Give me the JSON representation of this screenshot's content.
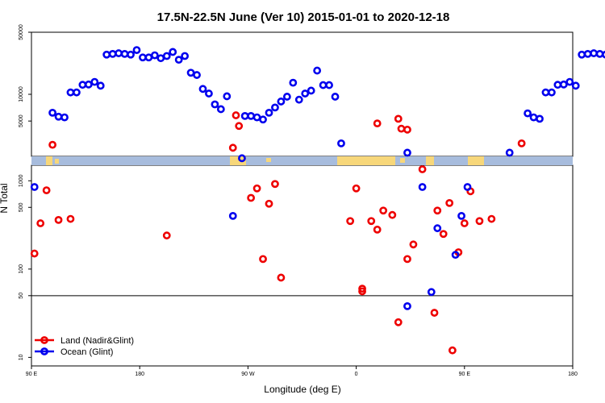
{
  "chart_data": {
    "type": "scatter",
    "title": "17.5N-22.5N June (Ver 10)   2015-01-01 to 2020-12-18",
    "xlabel": "Longitude (deg E)",
    "ylabel": "N Total",
    "x_ticks": [
      {
        "value": 90,
        "label": "90 E"
      },
      {
        "value": 180,
        "label": "180"
      },
      {
        "value": 270,
        "label": "90 W"
      },
      {
        "value": 360,
        "label": "0"
      },
      {
        "value": 450,
        "label": "90 E"
      },
      {
        "value": 540,
        "label": "180"
      }
    ],
    "xlim": [
      90,
      540
    ],
    "upper_panel": {
      "scale": "log",
      "ylim": [
        2000,
        50000
      ],
      "y_ticks": [
        {
          "value": 5000,
          "label": "5000"
        },
        {
          "value": 10000,
          "label": "10000"
        },
        {
          "value": 50000,
          "label": "50000"
        }
      ]
    },
    "lower_panel": {
      "scale": "log",
      "ylim": [
        8,
        1500
      ],
      "y_ticks": [
        {
          "value": 10,
          "label": "10"
        },
        {
          "value": 50,
          "label": "50"
        },
        {
          "value": 100,
          "label": "100"
        },
        {
          "value": 500,
          "label": "500"
        },
        {
          "value": 1000,
          "label": "1000"
        }
      ],
      "reference_line": 50
    },
    "series": [
      {
        "name": "Land (Nadir&Glint)",
        "color": "#ee0000",
        "upper": [
          [
            107.5,
            2700
          ],
          [
            257.5,
            2500
          ],
          [
            260,
            5800
          ],
          [
            262.5,
            4400
          ],
          [
            377.5,
            4700
          ],
          [
            395,
            5300
          ],
          [
            397.5,
            4100
          ],
          [
            402.5,
            4000
          ],
          [
            497.5,
            2800
          ]
        ],
        "lower": [
          [
            92.5,
            150
          ],
          [
            97.5,
            330
          ],
          [
            102.5,
            780
          ],
          [
            112.5,
            360
          ],
          [
            122.5,
            370
          ],
          [
            202.5,
            240
          ],
          [
            272.5,
            640
          ],
          [
            277.5,
            820
          ],
          [
            282.5,
            130
          ],
          [
            287.5,
            550
          ],
          [
            292.5,
            920
          ],
          [
            297.5,
            80
          ],
          [
            355,
            350
          ],
          [
            360,
            820
          ],
          [
            365,
            60
          ],
          [
            365,
            56
          ],
          [
            372.5,
            350
          ],
          [
            377.5,
            280
          ],
          [
            382.5,
            460
          ],
          [
            390,
            410
          ],
          [
            395,
            25
          ],
          [
            402.5,
            130
          ],
          [
            407.5,
            190
          ],
          [
            415,
            1350
          ],
          [
            425,
            32
          ],
          [
            427.5,
            460
          ],
          [
            432.5,
            250
          ],
          [
            437.5,
            560
          ],
          [
            440,
            12
          ],
          [
            445,
            155
          ],
          [
            450,
            330
          ],
          [
            455,
            760
          ],
          [
            462.5,
            350
          ],
          [
            472.5,
            370
          ]
        ]
      },
      {
        "name": "Ocean (Glint)",
        "color": "#0000ee",
        "upper": [
          [
            107.5,
            6200
          ],
          [
            112.5,
            5600
          ],
          [
            117.5,
            5500
          ],
          [
            122.5,
            10500
          ],
          [
            127.5,
            10500
          ],
          [
            132.5,
            12800
          ],
          [
            137.5,
            12900
          ],
          [
            142.5,
            13800
          ],
          [
            147.5,
            12500
          ],
          [
            152.5,
            28000
          ],
          [
            157.5,
            28500
          ],
          [
            162.5,
            29000
          ],
          [
            167.5,
            28500
          ],
          [
            172.5,
            28000
          ],
          [
            177.5,
            31500
          ],
          [
            182.5,
            26000
          ],
          [
            187.5,
            26000
          ],
          [
            192.5,
            27500
          ],
          [
            197.5,
            25500
          ],
          [
            202.5,
            27000
          ],
          [
            207.5,
            30000
          ],
          [
            212.5,
            24500
          ],
          [
            217.5,
            27000
          ],
          [
            222.5,
            17500
          ],
          [
            227.5,
            16500
          ],
          [
            232.5,
            11500
          ],
          [
            237.5,
            10200
          ],
          [
            242.5,
            7700
          ],
          [
            247.5,
            6800
          ],
          [
            252.5,
            9500
          ],
          [
            267.5,
            5700
          ],
          [
            272.5,
            5700
          ],
          [
            277.5,
            5500
          ],
          [
            282.5,
            5200
          ],
          [
            287.5,
            6200
          ],
          [
            292.5,
            7100
          ],
          [
            297.5,
            8300
          ],
          [
            302.5,
            9400
          ],
          [
            307.5,
            13500
          ],
          [
            312.5,
            8700
          ],
          [
            317.5,
            10200
          ],
          [
            322.5,
            11000
          ],
          [
            327.5,
            18500
          ],
          [
            332.5,
            12700
          ],
          [
            337.5,
            12700
          ],
          [
            342.5,
            9400
          ],
          [
            347.5,
            2800
          ],
          [
            402.5,
            2200
          ],
          [
            487.5,
            2200
          ],
          [
            502.5,
            6100
          ],
          [
            507.5,
            5500
          ],
          [
            512.5,
            5300
          ],
          [
            517.5,
            10500
          ],
          [
            522.5,
            10500
          ],
          [
            527.5,
            12800
          ],
          [
            532.5,
            12900
          ],
          [
            537.5,
            13800
          ],
          [
            542.5,
            12500
          ],
          [
            547.5,
            28000
          ],
          [
            552.5,
            28500
          ],
          [
            557.5,
            29000
          ],
          [
            562.5,
            28500
          ],
          [
            567.5,
            28000
          ],
          [
            572.5,
            31500
          ]
        ],
        "lower": [
          [
            92.5,
            850
          ],
          [
            257.5,
            400
          ],
          [
            265,
            1800
          ],
          [
            402.5,
            38
          ],
          [
            415,
            850
          ],
          [
            422.5,
            55
          ],
          [
            427.5,
            290
          ],
          [
            442.5,
            145
          ],
          [
            447.5,
            400
          ],
          [
            452.5,
            850
          ]
        ]
      }
    ],
    "legend": {
      "position": "bottom-left",
      "entries": [
        "Land (Nadir&Glint)",
        "Ocean (Glint)"
      ]
    }
  }
}
